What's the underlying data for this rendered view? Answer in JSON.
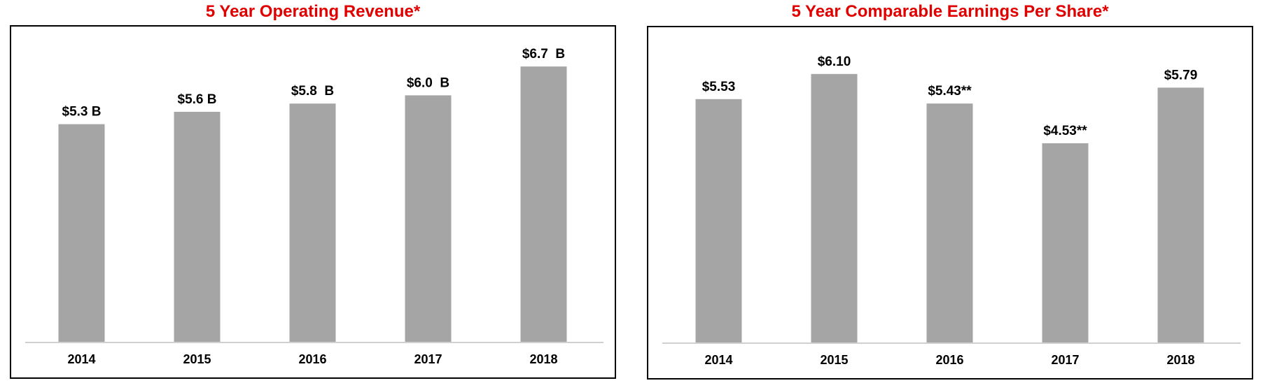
{
  "colors": {
    "title": "#e00000",
    "bar": "#a5a5a5",
    "axis": "#d0d0d0",
    "frame": "#000000"
  },
  "chart_data": [
    {
      "type": "bar",
      "title": "5 Year Operating Revenue*",
      "categories": [
        "2014",
        "2015",
        "2016",
        "2017",
        "2018"
      ],
      "values": [
        5.3,
        5.6,
        5.8,
        6.0,
        6.7
      ],
      "data_labels": [
        "$5.3 B",
        "$5.6 B",
        "$5.8  B",
        "$6.0  B",
        "$6.7  B"
      ],
      "xlabel": "",
      "ylabel": "",
      "ylim": [
        0,
        7.5
      ],
      "grid": false,
      "legend": "none"
    },
    {
      "type": "bar",
      "title": "5 Year Comparable Earnings Per Share*",
      "categories": [
        "2014",
        "2015",
        "2016",
        "2017",
        "2018"
      ],
      "values": [
        5.53,
        6.1,
        5.43,
        4.53,
        5.79
      ],
      "data_labels": [
        "$5.53",
        "$6.10",
        "$5.43**",
        "$4.53**",
        "$5.79"
      ],
      "xlabel": "",
      "ylabel": "",
      "ylim": [
        0,
        7.0
      ],
      "grid": false,
      "legend": "none"
    }
  ]
}
